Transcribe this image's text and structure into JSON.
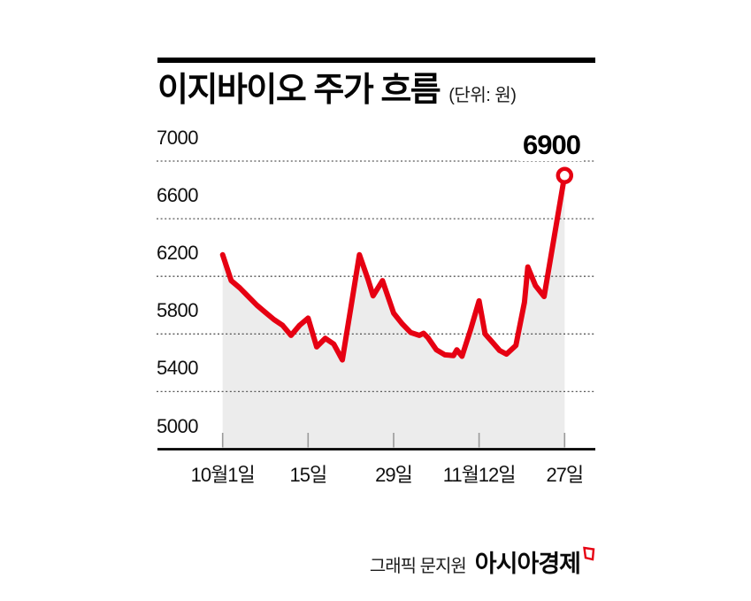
{
  "title": "이지바이오 주가 흐름",
  "unit_label": "(단위: 원)",
  "footer": {
    "credit": "그래픽 문지원",
    "brand": "아시아경제",
    "logo": "asia-economy-mark"
  },
  "colors": {
    "line": "#e60012",
    "marker_fill": "#ffffff",
    "area": "#ececec",
    "grid": "#5a5a5a",
    "tick": "#9a9a9a",
    "axis": "#000000",
    "text": "#111111"
  },
  "chart_data": {
    "type": "line",
    "title": "이지바이오 주가 흐름",
    "unit": "원",
    "grid": "horizontal dotted",
    "legend": "none",
    "xlim": [
      0,
      40
    ],
    "ylim": [
      5000,
      7000
    ],
    "y_ticks": [
      5000,
      5400,
      5800,
      6200,
      6600,
      7000
    ],
    "x_ticks": [
      {
        "day": 0,
        "label": "10월1일"
      },
      {
        "day": 10,
        "label": "15일"
      },
      {
        "day": 20,
        "label": "29일"
      },
      {
        "day": 30,
        "label": "11월12일"
      },
      {
        "day": 40,
        "label": "27일"
      }
    ],
    "end_label": "6900",
    "end_value": 6900,
    "series": [
      {
        "name": "이지바이오 주가(원)",
        "points": [
          [
            0,
            6350
          ],
          [
            1,
            6170
          ],
          [
            2,
            6120
          ],
          [
            3,
            6060
          ],
          [
            4,
            6000
          ],
          [
            5,
            5950
          ],
          [
            6,
            5900
          ],
          [
            7,
            5860
          ],
          [
            8,
            5790
          ],
          [
            9,
            5860
          ],
          [
            10,
            5910
          ],
          [
            11,
            5710
          ],
          [
            12,
            5770
          ],
          [
            13,
            5730
          ],
          [
            14,
            5620
          ],
          [
            15,
            5985
          ],
          [
            16,
            6350
          ],
          [
            17,
            6180
          ],
          [
            17.6,
            6065
          ],
          [
            18.7,
            6170
          ],
          [
            20,
            5945
          ],
          [
            21,
            5870
          ],
          [
            22,
            5810
          ],
          [
            23,
            5790
          ],
          [
            23.5,
            5805
          ],
          [
            24,
            5775
          ],
          [
            25,
            5690
          ],
          [
            26,
            5655
          ],
          [
            27,
            5650
          ],
          [
            27.4,
            5690
          ],
          [
            28,
            5645
          ],
          [
            29,
            5830
          ],
          [
            30,
            6030
          ],
          [
            30.7,
            5800
          ],
          [
            31.6,
            5740
          ],
          [
            32.4,
            5685
          ],
          [
            33.2,
            5660
          ],
          [
            34.3,
            5720
          ],
          [
            35.3,
            6020
          ],
          [
            35.7,
            6265
          ],
          [
            36.6,
            6135
          ],
          [
            37.6,
            6060
          ],
          [
            40,
            6900
          ]
        ]
      }
    ]
  }
}
